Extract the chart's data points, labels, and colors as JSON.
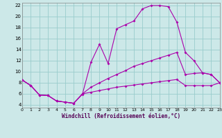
{
  "xlabel": "Windchill (Refroidissement éolien,°C)",
  "background_color": "#cce8e8",
  "grid_color": "#99cccc",
  "line_color": "#aa00aa",
  "xlim": [
    0,
    23
  ],
  "ylim": [
    3.5,
    22.5
  ],
  "xticks": [
    0,
    1,
    2,
    3,
    4,
    5,
    6,
    7,
    8,
    9,
    10,
    11,
    12,
    13,
    14,
    15,
    16,
    17,
    18,
    19,
    20,
    21,
    22,
    23
  ],
  "yticks": [
    4,
    6,
    8,
    10,
    12,
    14,
    16,
    18,
    20,
    22
  ],
  "series1": [
    [
      0,
      8.5
    ],
    [
      1,
      7.5
    ],
    [
      2,
      5.8
    ],
    [
      3,
      5.7
    ],
    [
      4,
      4.7
    ],
    [
      5,
      4.5
    ],
    [
      6,
      4.3
    ],
    [
      7,
      5.9
    ],
    [
      8,
      11.7
    ],
    [
      9,
      15.0
    ],
    [
      10,
      11.5
    ],
    [
      11,
      17.8
    ],
    [
      12,
      18.5
    ],
    [
      13,
      19.2
    ],
    [
      14,
      21.4
    ],
    [
      15,
      22.0
    ],
    [
      16,
      22.0
    ],
    [
      17,
      21.8
    ],
    [
      18,
      19.0
    ],
    [
      19,
      13.5
    ],
    [
      20,
      12.0
    ],
    [
      21,
      9.8
    ],
    [
      22,
      9.5
    ],
    [
      23,
      8.0
    ]
  ],
  "series2": [
    [
      0,
      8.5
    ],
    [
      1,
      7.5
    ],
    [
      2,
      5.8
    ],
    [
      3,
      5.7
    ],
    [
      4,
      4.7
    ],
    [
      5,
      4.5
    ],
    [
      6,
      4.3
    ],
    [
      7,
      6.0
    ],
    [
      8,
      7.2
    ],
    [
      9,
      8.0
    ],
    [
      10,
      8.8
    ],
    [
      11,
      9.5
    ],
    [
      12,
      10.2
    ],
    [
      13,
      11.0
    ],
    [
      14,
      11.5
    ],
    [
      15,
      12.0
    ],
    [
      16,
      12.5
    ],
    [
      17,
      13.0
    ],
    [
      18,
      13.5
    ],
    [
      19,
      9.5
    ],
    [
      20,
      9.7
    ],
    [
      21,
      9.8
    ],
    [
      22,
      9.5
    ],
    [
      23,
      8.0
    ]
  ],
  "series3": [
    [
      0,
      8.5
    ],
    [
      1,
      7.5
    ],
    [
      2,
      5.8
    ],
    [
      3,
      5.7
    ],
    [
      4,
      4.7
    ],
    [
      5,
      4.5
    ],
    [
      6,
      4.3
    ],
    [
      7,
      6.0
    ],
    [
      8,
      6.3
    ],
    [
      9,
      6.6
    ],
    [
      10,
      6.9
    ],
    [
      11,
      7.2
    ],
    [
      12,
      7.4
    ],
    [
      13,
      7.6
    ],
    [
      14,
      7.8
    ],
    [
      15,
      8.0
    ],
    [
      16,
      8.2
    ],
    [
      17,
      8.4
    ],
    [
      18,
      8.6
    ],
    [
      19,
      7.5
    ],
    [
      20,
      7.5
    ],
    [
      21,
      7.5
    ],
    [
      22,
      7.5
    ],
    [
      23,
      8.0
    ]
  ]
}
